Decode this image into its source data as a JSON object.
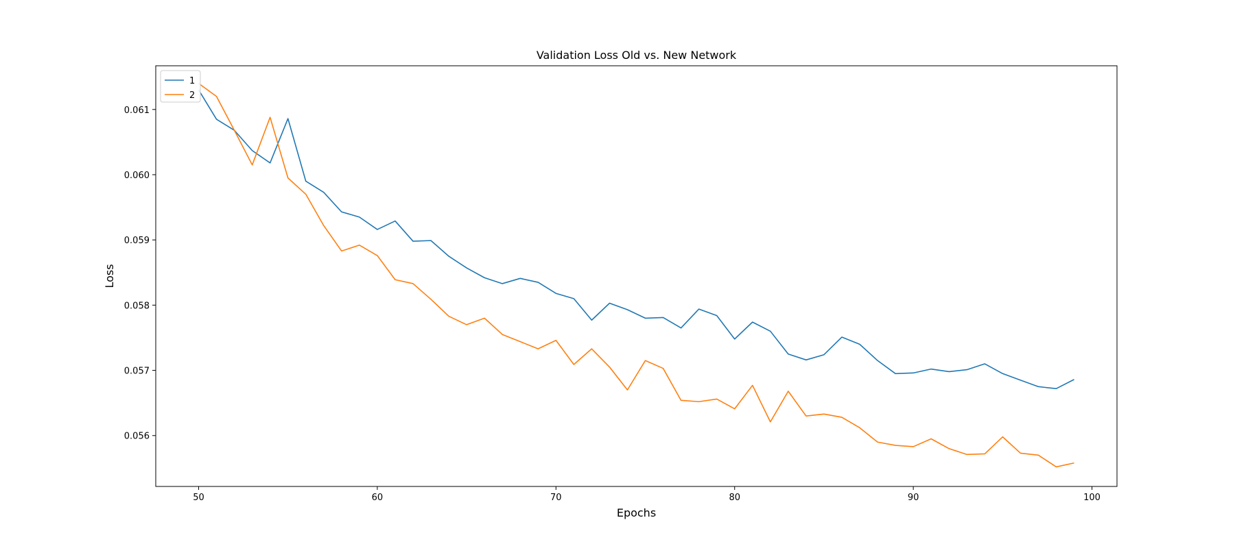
{
  "chart_data": {
    "type": "line",
    "title": "Validation Loss Old vs. New Network",
    "xlabel": "Epochs",
    "ylabel": "Loss",
    "xlim": [
      47.6,
      101.4
    ],
    "ylim": [
      0.05522,
      0.06167
    ],
    "xticks": [
      50,
      60,
      70,
      80,
      90,
      100
    ],
    "yticks": [
      0.056,
      0.057,
      0.058,
      0.059,
      0.06,
      0.061
    ],
    "ytick_labels": [
      "0.056",
      "0.057",
      "0.058",
      "0.059",
      "0.060",
      "0.061"
    ],
    "grid": false,
    "legend_position": "top-left",
    "x": [
      50,
      51,
      52,
      53,
      54,
      55,
      56,
      57,
      58,
      59,
      60,
      61,
      62,
      63,
      64,
      65,
      66,
      67,
      68,
      69,
      70,
      71,
      72,
      73,
      74,
      75,
      76,
      77,
      78,
      79,
      80,
      81,
      82,
      83,
      84,
      85,
      86,
      87,
      88,
      89,
      90,
      91,
      92,
      93,
      94,
      95,
      96,
      97,
      98,
      99
    ],
    "series": [
      {
        "name": "1",
        "color": "#1f77b4",
        "values": [
          0.0613,
          0.06085,
          0.06068,
          0.06037,
          0.06018,
          0.06086,
          0.0599,
          0.05973,
          0.05943,
          0.05935,
          0.05916,
          0.05929,
          0.05898,
          0.05899,
          0.05875,
          0.05857,
          0.05842,
          0.05833,
          0.05841,
          0.05835,
          0.05818,
          0.0581,
          0.05777,
          0.05803,
          0.05793,
          0.0578,
          0.05781,
          0.05765,
          0.05794,
          0.05784,
          0.05748,
          0.05774,
          0.0576,
          0.05725,
          0.05716,
          0.05724,
          0.05751,
          0.0574,
          0.05715,
          0.05695,
          0.05696,
          0.05702,
          0.05698,
          0.05701,
          0.0571,
          0.05695,
          0.05685,
          0.05675,
          0.05672,
          0.05686
        ]
      },
      {
        "name": "2",
        "color": "#ff7f0e",
        "values": [
          0.0614,
          0.0612,
          0.06068,
          0.06015,
          0.06088,
          0.05995,
          0.0597,
          0.05922,
          0.05883,
          0.05892,
          0.05876,
          0.05839,
          0.05833,
          0.05809,
          0.05783,
          0.0577,
          0.0578,
          0.05755,
          0.05744,
          0.05733,
          0.05746,
          0.05709,
          0.05733,
          0.05705,
          0.0567,
          0.05715,
          0.05703,
          0.05654,
          0.05652,
          0.05656,
          0.05641,
          0.05677,
          0.05621,
          0.05668,
          0.0563,
          0.05633,
          0.05628,
          0.05612,
          0.0559,
          0.05585,
          0.05583,
          0.05595,
          0.0558,
          0.05571,
          0.05572,
          0.05598,
          0.05573,
          0.0557,
          0.05552,
          0.05558
        ]
      }
    ]
  }
}
